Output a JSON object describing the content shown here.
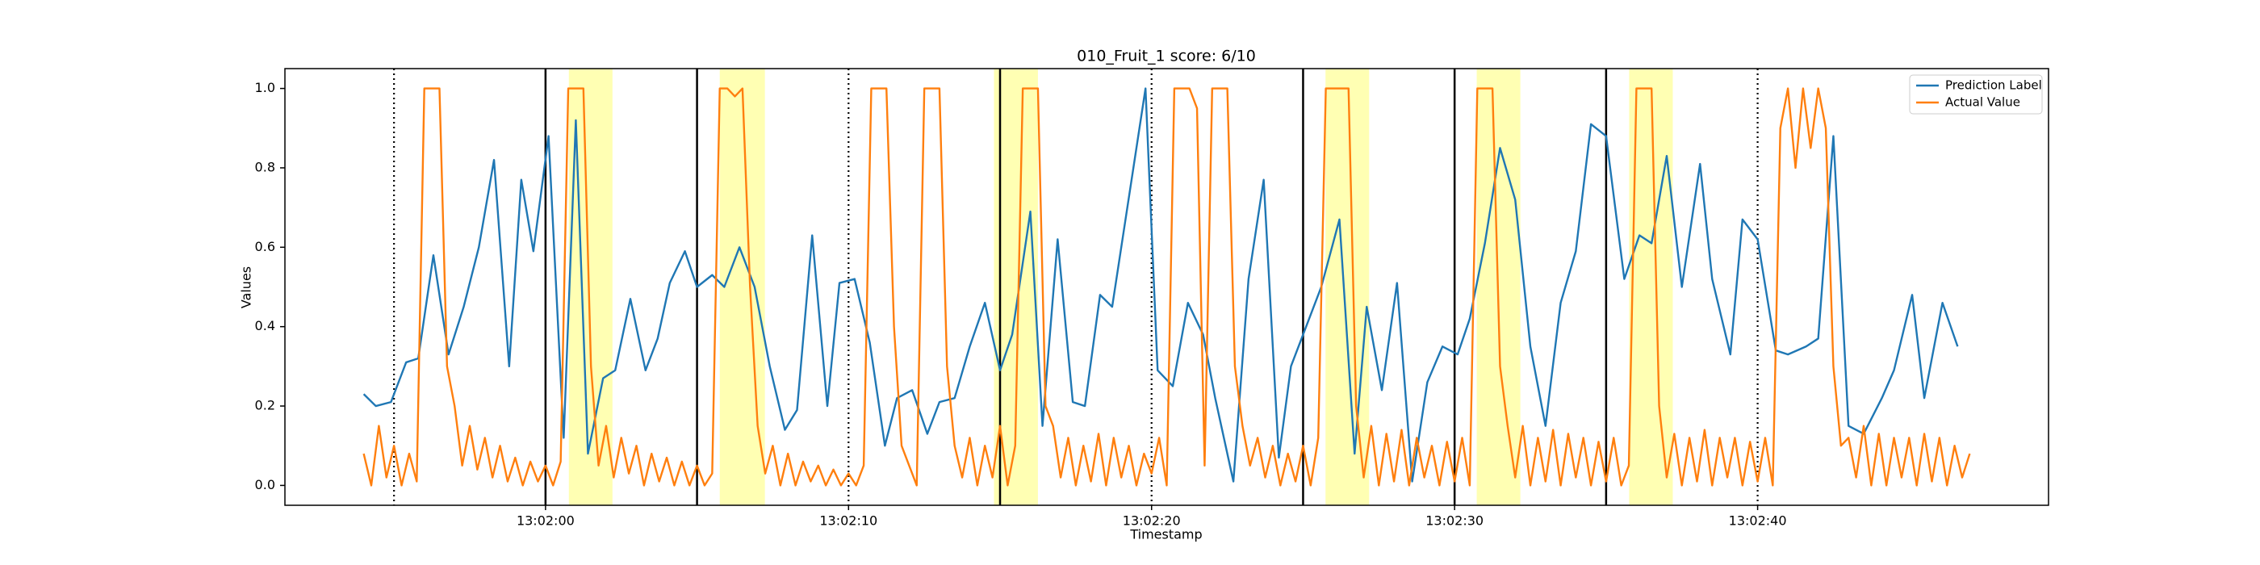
{
  "chart_data": {
    "type": "line",
    "title": "010_Fruit_1 score: 6/10",
    "x_label": "Timestamp",
    "y_label": "Values",
    "xlim": [
      46911.4,
      46969.6
    ],
    "ylim": [
      -0.05,
      1.05
    ],
    "xticks": [
      {
        "value": 46920,
        "label": "13:02:00"
      },
      {
        "value": 46930,
        "label": "13:02:10"
      },
      {
        "value": 46940,
        "label": "13:02:20"
      },
      {
        "value": 46950,
        "label": "13:02:30"
      },
      {
        "value": 46960,
        "label": "13:02:40"
      }
    ],
    "yticks": [
      {
        "value": 0,
        "label": "0.0"
      },
      0.2,
      0.4,
      0.6,
      0.8,
      {
        "value": 1,
        "label": "1.0"
      }
    ],
    "legend": "upper right",
    "grid": false,
    "span_color": "#ffffb3",
    "spans": [
      [
        46920.77,
        46922.21
      ],
      [
        46925.75,
        46927.24
      ],
      [
        46934.8,
        46936.25
      ],
      [
        46945.74,
        46947.18
      ],
      [
        46950.73,
        46952.17
      ],
      [
        46955.76,
        46957.2
      ]
    ],
    "vlines_solid": [
      46920,
      46925,
      46935,
      46945,
      46950,
      46955
    ],
    "vlines_dotted": [
      46915,
      46930,
      46940,
      46960
    ],
    "series": [
      {
        "name": "Prediction Label",
        "color": "#1f77b4",
        "x": [
          46914.0,
          46914.4,
          46914.9,
          46915.4,
          46915.8,
          46916.3,
          46916.8,
          46917.3,
          46917.8,
          46918.3,
          46918.8,
          46919.2,
          46919.6,
          46920.1,
          46920.6,
          46921.0,
          46921.4,
          46921.9,
          46922.3,
          46922.8,
          46923.3,
          46923.7,
          46924.1,
          46924.6,
          46925.0,
          46925.5,
          46925.9,
          46926.4,
          46926.9,
          46927.4,
          46927.9,
          46928.3,
          46928.8,
          46929.3,
          46929.7,
          46930.2,
          46930.7,
          46931.2,
          46931.6,
          46932.1,
          46932.6,
          46933.0,
          46933.5,
          46934.0,
          46934.5,
          46935.0,
          46935.4,
          46936.0,
          46936.4,
          46936.9,
          46937.4,
          46937.8,
          46938.3,
          46938.7,
          46939.3,
          46939.8,
          46940.2,
          46940.7,
          46941.2,
          46941.7,
          46942.1,
          46942.7,
          46943.2,
          46943.7,
          46944.2,
          46944.6,
          46945.1,
          46945.6,
          46946.2,
          46946.7,
          46947.1,
          46947.6,
          46948.1,
          46948.6,
          46949.1,
          46949.6,
          46950.1,
          46950.5,
          46951.0,
          46951.5,
          46952.0,
          46952.5,
          46953.0,
          46953.5,
          46954.0,
          46954.5,
          46955.0,
          46955.6,
          46956.1,
          46956.5,
          46957.0,
          46957.5,
          46958.1,
          46958.5,
          46959.1,
          46959.5,
          46960.0,
          46960.6,
          46961.0,
          46961.6,
          46962.0,
          46962.5,
          46963.0,
          46963.5,
          46964.1,
          46964.5,
          46965.1,
          46965.5,
          46966.1,
          46966.6
        ],
        "values": [
          0.23,
          0.2,
          0.21,
          0.31,
          0.32,
          0.58,
          0.33,
          0.45,
          0.6,
          0.82,
          0.3,
          0.77,
          0.59,
          0.88,
          0.12,
          0.92,
          0.08,
          0.27,
          0.29,
          0.47,
          0.29,
          0.37,
          0.51,
          0.59,
          0.5,
          0.53,
          0.5,
          0.6,
          0.5,
          0.3,
          0.14,
          0.19,
          0.63,
          0.2,
          0.51,
          0.52,
          0.36,
          0.1,
          0.22,
          0.24,
          0.13,
          0.21,
          0.22,
          0.35,
          0.46,
          0.29,
          0.38,
          0.69,
          0.15,
          0.62,
          0.21,
          0.2,
          0.48,
          0.45,
          0.75,
          1.0,
          0.29,
          0.25,
          0.46,
          0.38,
          0.22,
          0.01,
          0.52,
          0.77,
          0.07,
          0.3,
          0.4,
          0.5,
          0.67,
          0.08,
          0.45,
          0.24,
          0.51,
          0.01,
          0.26,
          0.35,
          0.33,
          0.42,
          0.61,
          0.85,
          0.72,
          0.35,
          0.15,
          0.46,
          0.59,
          0.91,
          0.88,
          0.52,
          0.63,
          0.61,
          0.83,
          0.5,
          0.81,
          0.52,
          0.33,
          0.67,
          0.62,
          0.34,
          0.33,
          0.35,
          0.37,
          0.88,
          0.15,
          0.13,
          0.22,
          0.29,
          0.48,
          0.22,
          0.46,
          0.35
        ]
      },
      {
        "name": "Actual Value",
        "color": "#ff7f0e",
        "x": [
          46914,
          46914.25,
          46914.5,
          46914.75,
          46915,
          46915.25,
          46915.5,
          46915.75,
          46916,
          46916.25,
          46916.5,
          46916.75,
          46917,
          46917.25,
          46917.5,
          46917.75,
          46918,
          46918.25,
          46918.5,
          46918.75,
          46919,
          46919.25,
          46919.5,
          46919.75,
          46920,
          46920.25,
          46920.5,
          46920.75,
          46921,
          46921.25,
          46921.5,
          46921.75,
          46922,
          46922.25,
          46922.5,
          46922.75,
          46923,
          46923.25,
          46923.5,
          46923.75,
          46924,
          46924.25,
          46924.5,
          46924.75,
          46925,
          46925.25,
          46925.5,
          46925.75,
          46926,
          46926.25,
          46926.5,
          46926.75,
          46927,
          46927.25,
          46927.5,
          46927.75,
          46928,
          46928.25,
          46928.5,
          46928.75,
          46929,
          46929.25,
          46929.5,
          46929.75,
          46930,
          46930.25,
          46930.5,
          46930.75,
          46931,
          46931.25,
          46931.5,
          46931.75,
          46932,
          46932.25,
          46932.5,
          46932.75,
          46933,
          46933.25,
          46933.5,
          46933.75,
          46934,
          46934.25,
          46934.5,
          46934.75,
          46935,
          46935.25,
          46935.5,
          46935.75,
          46936,
          46936.25,
          46936.5,
          46936.75,
          46937,
          46937.25,
          46937.5,
          46937.75,
          46938,
          46938.25,
          46938.5,
          46938.75,
          46939,
          46939.25,
          46939.5,
          46939.75,
          46940,
          46940.25,
          46940.5,
          46940.75,
          46941,
          46941.25,
          46941.5,
          46941.75,
          46942,
          46942.25,
          46942.5,
          46942.75,
          46943,
          46943.25,
          46943.5,
          46943.75,
          46944,
          46944.25,
          46944.5,
          46944.75,
          46945,
          46945.25,
          46945.5,
          46945.75,
          46946,
          46946.25,
          46946.5,
          46946.75,
          46947,
          46947.25,
          46947.5,
          46947.75,
          46948,
          46948.25,
          46948.5,
          46948.75,
          46949,
          46949.25,
          46949.5,
          46949.75,
          46950,
          46950.25,
          46950.5,
          46950.75,
          46951,
          46951.25,
          46951.5,
          46951.75,
          46952,
          46952.25,
          46952.5,
          46952.75,
          46953,
          46953.25,
          46953.5,
          46953.75,
          46954,
          46954.25,
          46954.5,
          46954.75,
          46955,
          46955.25,
          46955.5,
          46955.75,
          46956,
          46956.25,
          46956.5,
          46956.75,
          46957,
          46957.25,
          46957.5,
          46957.75,
          46958,
          46958.25,
          46958.5,
          46958.75,
          46959,
          46959.25,
          46959.5,
          46959.75,
          46960,
          46960.25,
          46960.5,
          46960.75,
          46961,
          46961.25,
          46961.5,
          46961.75,
          46962,
          46962.25,
          46962.5,
          46962.75,
          46963,
          46963.25,
          46963.5,
          46963.75,
          46964,
          46964.25,
          46964.5,
          46964.75,
          46965,
          46965.25,
          46965.5,
          46965.75,
          46966,
          46966.25,
          46966.5,
          46966.75,
          46967
        ],
        "values": [
          0.08,
          0.0,
          0.15,
          0.02,
          0.1,
          0.0,
          0.08,
          0.01,
          1.0,
          1.0,
          1.0,
          0.3,
          0.2,
          0.05,
          0.15,
          0.04,
          0.12,
          0.02,
          0.1,
          0.01,
          0.07,
          0.0,
          0.06,
          0.01,
          0.05,
          0.0,
          0.06,
          1.0,
          1.0,
          1.0,
          0.3,
          0.05,
          0.15,
          0.02,
          0.12,
          0.03,
          0.1,
          0.0,
          0.08,
          0.01,
          0.07,
          0.0,
          0.06,
          0.0,
          0.05,
          0.0,
          0.03,
          1.0,
          1.0,
          0.98,
          1.0,
          0.5,
          0.15,
          0.03,
          0.1,
          0.0,
          0.08,
          0.0,
          0.06,
          0.01,
          0.05,
          0.0,
          0.04,
          0.0,
          0.03,
          0.0,
          0.05,
          1.0,
          1.0,
          1.0,
          0.4,
          0.1,
          0.05,
          0.0,
          1.0,
          1.0,
          1.0,
          0.3,
          0.1,
          0.02,
          0.12,
          0.0,
          0.1,
          0.02,
          0.15,
          0.0,
          0.1,
          1.0,
          1.0,
          1.0,
          0.2,
          0.15,
          0.02,
          0.12,
          0.0,
          0.1,
          0.01,
          0.13,
          0.0,
          0.12,
          0.02,
          0.1,
          0.0,
          0.08,
          0.03,
          0.12,
          0.0,
          1.0,
          1.0,
          1.0,
          0.95,
          0.05,
          1.0,
          1.0,
          1.0,
          0.3,
          0.15,
          0.05,
          0.12,
          0.02,
          0.1,
          0.0,
          0.08,
          0.01,
          0.1,
          0.0,
          0.12,
          1.0,
          1.0,
          1.0,
          1.0,
          0.2,
          0.02,
          0.15,
          0.0,
          0.13,
          0.01,
          0.14,
          0.0,
          0.12,
          0.02,
          0.1,
          0.0,
          0.11,
          0.01,
          0.12,
          0.0,
          1.0,
          1.0,
          1.0,
          0.3,
          0.15,
          0.02,
          0.15,
          0.0,
          0.12,
          0.01,
          0.14,
          0.0,
          0.13,
          0.02,
          0.12,
          0.0,
          0.11,
          0.01,
          0.12,
          0.0,
          0.05,
          1.0,
          1.0,
          1.0,
          0.2,
          0.02,
          0.13,
          0.0,
          0.12,
          0.01,
          0.14,
          0.0,
          0.12,
          0.02,
          0.12,
          0.0,
          0.11,
          0.01,
          0.12,
          0.0,
          0.9,
          1.0,
          0.8,
          1.0,
          0.85,
          1.0,
          0.9,
          0.3,
          0.1,
          0.12,
          0.02,
          0.15,
          0.0,
          0.13,
          0.0,
          0.12,
          0.02,
          0.12,
          0.0,
          0.13,
          0.01,
          0.12,
          0.0,
          0.1,
          0.02,
          0.08
        ]
      }
    ]
  }
}
